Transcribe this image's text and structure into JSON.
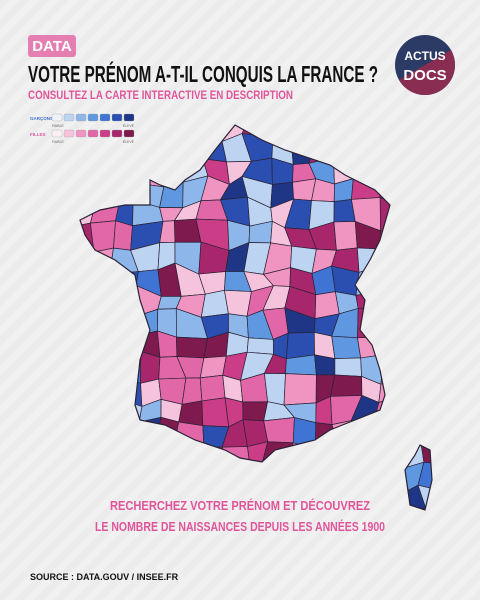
{
  "header": {
    "tag": "DATA",
    "title": "VOTRE PRÉNOM A-T-IL CONQUIS LA FRANCE ?",
    "subtitle": "CONSULTEZ LA CARTE INTERACTIVE EN DESCRIPTION"
  },
  "logo": {
    "line1": "ACTUS",
    "line2": "DOCS"
  },
  "legend": {
    "low": "FAIBLE",
    "high": "ÉLEVÉ",
    "rows": [
      {
        "label": "GARÇONS",
        "color": "#3b6fd0",
        "swatches": [
          "#eef2fb",
          "#bcd3f2",
          "#8db6ea",
          "#5f97e0",
          "#3f74d4",
          "#2a4fb0",
          "#1f3585"
        ]
      },
      {
        "label": "FILLES",
        "color": "#e0559a",
        "swatches": [
          "#fbeef4",
          "#f6c3dc",
          "#f095c2",
          "#e267a8",
          "#cc3d88",
          "#a8266b",
          "#7e1a4e"
        ]
      }
    ]
  },
  "footer": {
    "line1": "RECHERCHEZ VOTRE PRÉNOM ET DÉCOUVREZ",
    "line2": "LE NOMBRE DE NAISSANCES DEPUIS LES ANNÉES 1900",
    "source": "SOURCE : DATA.GOUV / INSEE.FR"
  }
}
